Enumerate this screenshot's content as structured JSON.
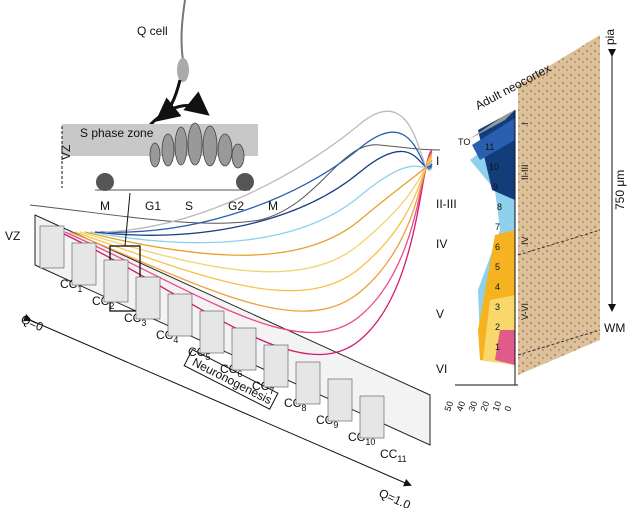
{
  "inset": {
    "q_cell": "Q cell",
    "s_phase_zone": "S phase zone",
    "vz": "VZ",
    "phases": [
      "M",
      "G1",
      "S",
      "G2",
      "M"
    ]
  },
  "main": {
    "vz": "VZ",
    "cycles": [
      {
        "base": "CC",
        "sub": "1"
      },
      {
        "base": "CC",
        "sub": "2"
      },
      {
        "base": "CC",
        "sub": "3"
      },
      {
        "base": "CC",
        "sub": "4"
      },
      {
        "base": "CC",
        "sub": "5"
      },
      {
        "base": "CC",
        "sub": "6"
      },
      {
        "base": "CC",
        "sub": "7"
      },
      {
        "base": "CC",
        "sub": "8"
      },
      {
        "base": "CC",
        "sub": "9"
      },
      {
        "base": "CC",
        "sub": "10"
      },
      {
        "base": "CC",
        "sub": "11"
      }
    ],
    "q_start": "Q=0",
    "q_end": "Q=1.0",
    "process": "Neuronogenesis",
    "layers": [
      "I",
      "II-III",
      "IV",
      "V",
      "VI"
    ]
  },
  "distribution": {
    "top_label": "TO",
    "cohorts": [
      "11",
      "10",
      "9",
      "8",
      "7",
      "6",
      "5",
      "4",
      "3",
      "2",
      "1"
    ],
    "axis_ticks": [
      50,
      40,
      30,
      20,
      10,
      0
    ]
  },
  "section": {
    "title": "Adult neocortex",
    "pia": "pia",
    "scale": "750 μm",
    "wm": "WM",
    "layers": [
      "I",
      "II-III",
      "IV",
      "V-VI"
    ]
  }
}
